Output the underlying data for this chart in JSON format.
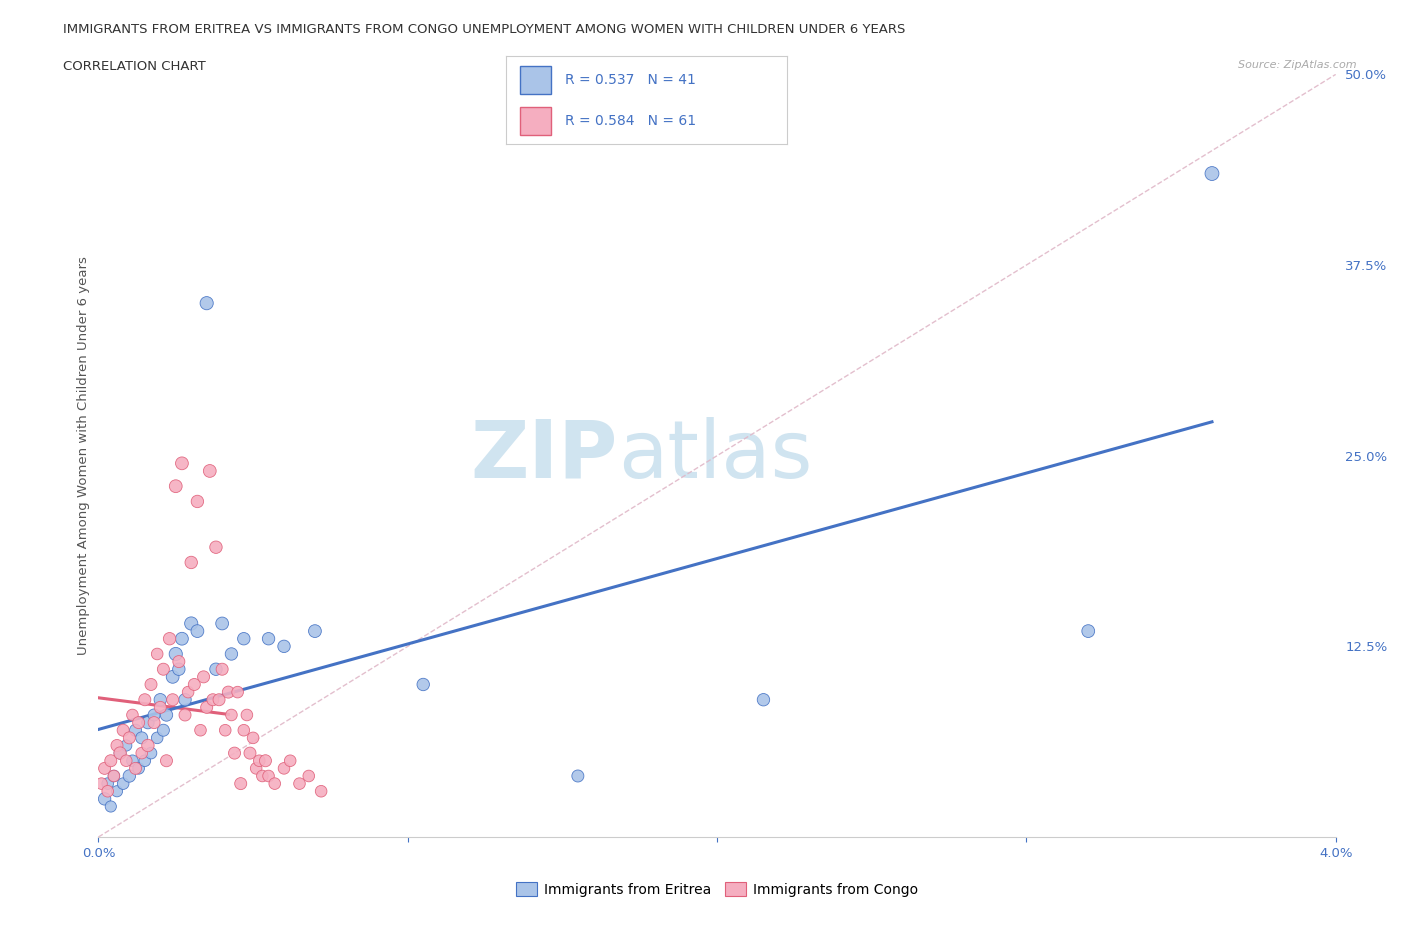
{
  "title_line1": "IMMIGRANTS FROM ERITREA VS IMMIGRANTS FROM CONGO UNEMPLOYMENT AMONG WOMEN WITH CHILDREN UNDER 6 YEARS",
  "title_line2": "CORRELATION CHART",
  "source_text": "Source: ZipAtlas.com",
  "ylabel": "Unemployment Among Women with Children Under 6 years",
  "xlim": [
    0.0,
    4.0
  ],
  "ylim": [
    0.0,
    50.0
  ],
  "xticks": [
    0.0,
    1.0,
    2.0,
    3.0,
    4.0
  ],
  "xtick_labels": [
    "0.0%",
    "",
    "",
    "",
    "4.0%"
  ],
  "yticks": [
    0.0,
    12.5,
    25.0,
    37.5,
    50.0
  ],
  "ytick_labels": [
    "",
    "12.5%",
    "25.0%",
    "37.5%",
    "50.0%"
  ],
  "eritrea_color": "#aac4e8",
  "congo_color": "#f5aec0",
  "eritrea_R": 0.537,
  "eritrea_N": 41,
  "congo_R": 0.584,
  "congo_N": 61,
  "eritrea_line_color": "#4472c4",
  "congo_line_color": "#e0607a",
  "ref_line_color": "#e0b8c8",
  "watermark_color": "#d0e4f0",
  "legend_label_eritrea": "Immigrants from Eritrea",
  "legend_label_congo": "Immigrants from Congo",
  "eritrea_x": [
    0.02,
    0.03,
    0.04,
    0.05,
    0.06,
    0.07,
    0.08,
    0.09,
    0.1,
    0.11,
    0.12,
    0.13,
    0.14,
    0.15,
    0.16,
    0.17,
    0.18,
    0.19,
    0.2,
    0.21,
    0.22,
    0.24,
    0.25,
    0.26,
    0.27,
    0.28,
    0.3,
    0.32,
    0.35,
    0.38,
    0.4,
    0.43,
    0.47,
    0.55,
    0.6,
    0.7,
    1.05,
    1.55,
    2.15,
    3.2,
    3.6
  ],
  "eritrea_y": [
    2.5,
    3.5,
    2.0,
    4.0,
    3.0,
    5.5,
    3.5,
    6.0,
    4.0,
    5.0,
    7.0,
    4.5,
    6.5,
    5.0,
    7.5,
    5.5,
    8.0,
    6.5,
    9.0,
    7.0,
    8.0,
    10.5,
    12.0,
    11.0,
    13.0,
    9.0,
    14.0,
    13.5,
    35.0,
    11.0,
    14.0,
    12.0,
    13.0,
    13.0,
    12.5,
    13.5,
    10.0,
    4.0,
    9.0,
    13.5,
    43.5
  ],
  "eritrea_size": [
    80,
    70,
    65,
    70,
    65,
    75,
    70,
    65,
    80,
    70,
    75,
    70,
    75,
    70,
    80,
    70,
    75,
    70,
    80,
    75,
    80,
    85,
    90,
    80,
    85,
    80,
    90,
    85,
    90,
    80,
    85,
    80,
    80,
    80,
    80,
    85,
    80,
    75,
    80,
    85,
    100
  ],
  "congo_x": [
    0.01,
    0.02,
    0.03,
    0.04,
    0.05,
    0.06,
    0.07,
    0.08,
    0.09,
    0.1,
    0.11,
    0.12,
    0.13,
    0.14,
    0.15,
    0.16,
    0.17,
    0.18,
    0.19,
    0.2,
    0.21,
    0.22,
    0.23,
    0.24,
    0.25,
    0.26,
    0.27,
    0.28,
    0.29,
    0.3,
    0.31,
    0.32,
    0.33,
    0.34,
    0.35,
    0.36,
    0.37,
    0.38,
    0.39,
    0.4,
    0.41,
    0.42,
    0.43,
    0.44,
    0.45,
    0.46,
    0.47,
    0.48,
    0.49,
    0.5,
    0.51,
    0.52,
    0.53,
    0.54,
    0.55,
    0.57,
    0.6,
    0.62,
    0.65,
    0.68,
    0.72
  ],
  "congo_y": [
    3.5,
    4.5,
    3.0,
    5.0,
    4.0,
    6.0,
    5.5,
    7.0,
    5.0,
    6.5,
    8.0,
    4.5,
    7.5,
    5.5,
    9.0,
    6.0,
    10.0,
    7.5,
    12.0,
    8.5,
    11.0,
    5.0,
    13.0,
    9.0,
    23.0,
    11.5,
    24.5,
    8.0,
    9.5,
    18.0,
    10.0,
    22.0,
    7.0,
    10.5,
    8.5,
    24.0,
    9.0,
    19.0,
    9.0,
    11.0,
    7.0,
    9.5,
    8.0,
    5.5,
    9.5,
    3.5,
    7.0,
    8.0,
    5.5,
    6.5,
    4.5,
    5.0,
    4.0,
    5.0,
    4.0,
    3.5,
    4.5,
    5.0,
    3.5,
    4.0,
    3.0
  ],
  "congo_size": [
    70,
    75,
    70,
    75,
    70,
    75,
    80,
    75,
    70,
    75,
    70,
    75,
    75,
    70,
    75,
    80,
    75,
    75,
    70,
    75,
    75,
    75,
    80,
    75,
    85,
    75,
    85,
    75,
    70,
    80,
    75,
    80,
    70,
    75,
    75,
    85,
    75,
    80,
    75,
    75,
    70,
    75,
    70,
    75,
    70,
    75,
    70,
    70,
    75,
    70,
    70,
    70,
    70,
    75,
    70,
    70,
    70,
    70,
    70,
    70,
    70
  ],
  "congo_line_xmax": 0.42
}
